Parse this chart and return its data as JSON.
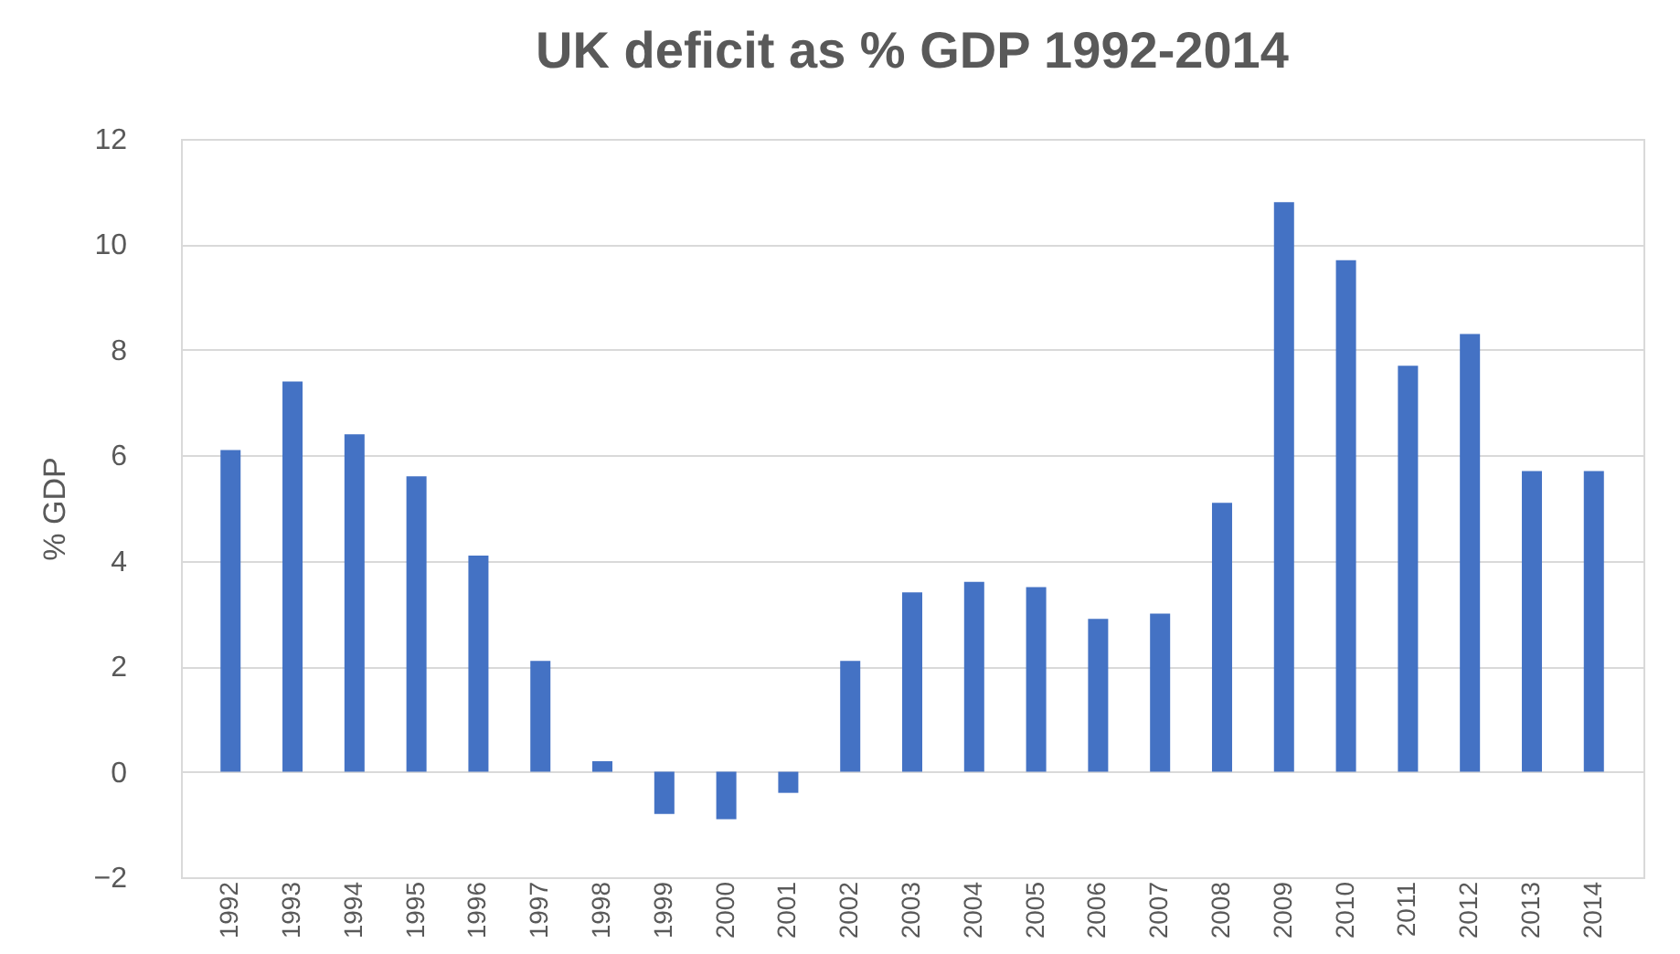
{
  "chart_data": {
    "type": "bar",
    "title": "UK deficit as % GDP 1992-2014",
    "ylabel": "% GDP",
    "categories": [
      "1992",
      "1993",
      "1994",
      "1995",
      "1996",
      "1997",
      "1998",
      "1999",
      "2000",
      "2001",
      "2002",
      "2003",
      "2004",
      "2005",
      "2006",
      "2007",
      "2008",
      "2009",
      "2010",
      "2011",
      "2012",
      "2013",
      "2014"
    ],
    "values": [
      6.1,
      7.4,
      6.4,
      5.6,
      4.1,
      2.1,
      0.2,
      -0.8,
      -0.9,
      -0.4,
      2.1,
      3.4,
      3.6,
      3.5,
      2.9,
      3.0,
      5.1,
      10.8,
      9.7,
      7.7,
      8.3,
      5.7,
      5.7
    ],
    "color": "#4472c4",
    "ylim": [
      -2,
      12
    ],
    "yticks": [
      -2,
      0,
      2,
      4,
      6,
      8,
      10,
      12
    ],
    "grid": "y"
  }
}
